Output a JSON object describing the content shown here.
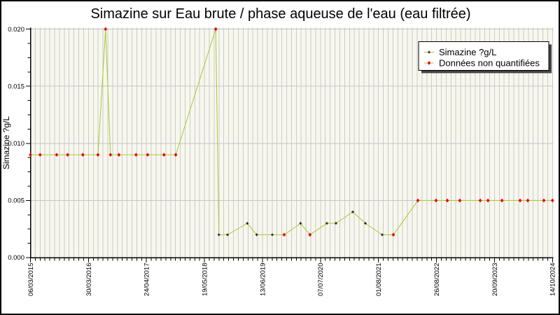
{
  "chart_data": {
    "type": "line",
    "title": "Simazine sur Eau brute / phase aqueuse de l'eau (eau filtrée)",
    "ylabel": "Simazine ?g/L",
    "ylim": [
      0,
      0.02
    ],
    "yticks": [
      0.0,
      0.005,
      0.01,
      0.015,
      0.02
    ],
    "ytick_labels": [
      "0.000",
      "0.005",
      "0.010",
      "0.015",
      "0.020"
    ],
    "xtick_labels": [
      "06/03/2015",
      "30/03/2016",
      "24/04/2017",
      "19/05/2018",
      "13/06/2019",
      "07/07/2020",
      "01/08/2021",
      "26/08/2022",
      "20/09/2023",
      "14/10/2024"
    ],
    "legend": {
      "position": "top-right",
      "entries": [
        {
          "label": "Simazine ?g/L",
          "marker": "plus",
          "marker_color": "#000000"
        },
        {
          "label": "Données non quantifiées",
          "marker": "diamond",
          "marker_color": "#ee0000"
        }
      ]
    },
    "grid": {
      "vertical_stripes": true,
      "horizontal_major_lines": true
    },
    "line_color": "#a8c832",
    "points": [
      {
        "date": "06/03/2015",
        "value": 0.009,
        "quantified": false
      },
      {
        "date": "10/05/2015",
        "value": 0.009,
        "quantified": false
      },
      {
        "date": "29/08/2015",
        "value": 0.009,
        "quantified": false
      },
      {
        "date": "11/11/2015",
        "value": 0.009,
        "quantified": false
      },
      {
        "date": "21/02/2016",
        "value": 0.009,
        "quantified": false
      },
      {
        "date": "02/06/2016",
        "value": 0.009,
        "quantified": false
      },
      {
        "date": "23/07/2016",
        "value": 0.02,
        "quantified": false
      },
      {
        "date": "25/08/2016",
        "value": 0.009,
        "quantified": false
      },
      {
        "date": "21/10/2016",
        "value": 0.009,
        "quantified": false
      },
      {
        "date": "13/02/2017",
        "value": 0.009,
        "quantified": false
      },
      {
        "date": "02/05/2017",
        "value": 0.009,
        "quantified": false
      },
      {
        "date": "20/08/2017",
        "value": 0.009,
        "quantified": false
      },
      {
        "date": "07/11/2017",
        "value": 0.009,
        "quantified": false
      },
      {
        "date": "03/08/2018",
        "value": 0.02,
        "quantified": false
      },
      {
        "date": "24/08/2018",
        "value": 0.002,
        "quantified": true
      },
      {
        "date": "21/10/2018",
        "value": 0.002,
        "quantified": true
      },
      {
        "date": "03/03/2019",
        "value": 0.003,
        "quantified": true
      },
      {
        "date": "05/05/2019",
        "value": 0.002,
        "quantified": true
      },
      {
        "date": "18/08/2019",
        "value": 0.002,
        "quantified": true
      },
      {
        "date": "06/11/2019",
        "value": 0.002,
        "quantified": false
      },
      {
        "date": "24/02/2020",
        "value": 0.003,
        "quantified": true
      },
      {
        "date": "27/04/2020",
        "value": 0.002,
        "quantified": false
      },
      {
        "date": "19/08/2020",
        "value": 0.003,
        "quantified": true
      },
      {
        "date": "19/10/2020",
        "value": 0.003,
        "quantified": true
      },
      {
        "date": "09/02/2021",
        "value": 0.004,
        "quantified": true
      },
      {
        "date": "05/05/2021",
        "value": 0.003,
        "quantified": true
      },
      {
        "date": "26/08/2021",
        "value": 0.002,
        "quantified": true
      },
      {
        "date": "09/11/2021",
        "value": 0.002,
        "quantified": false
      },
      {
        "date": "23/04/2022",
        "value": 0.005,
        "quantified": false
      },
      {
        "date": "23/08/2022",
        "value": 0.005,
        "quantified": false
      },
      {
        "date": "07/11/2022",
        "value": 0.005,
        "quantified": false
      },
      {
        "date": "30/01/2023",
        "value": 0.005,
        "quantified": false
      },
      {
        "date": "16/06/2023",
        "value": 0.005,
        "quantified": false
      },
      {
        "date": "07/08/2023",
        "value": 0.005,
        "quantified": false
      },
      {
        "date": "09/11/2023",
        "value": 0.005,
        "quantified": false
      },
      {
        "date": "10/03/2024",
        "value": 0.005,
        "quantified": false
      },
      {
        "date": "01/05/2024",
        "value": 0.005,
        "quantified": false
      },
      {
        "date": "17/08/2024",
        "value": 0.005,
        "quantified": false
      },
      {
        "date": "14/10/2024",
        "value": 0.005,
        "quantified": false
      }
    ]
  },
  "colors": {
    "plot_background": "#f7f7ee",
    "stripe_line": "#cbcbcb",
    "grid_line": "#c6c6cc",
    "axis": "#000000",
    "series_line": "#a8c832",
    "nonquantified_marker": "#ee0000",
    "quantified_marker": "#000000",
    "legend_background": "#ffffff",
    "legend_shadow": "#444444",
    "frame_border": "#000000"
  }
}
